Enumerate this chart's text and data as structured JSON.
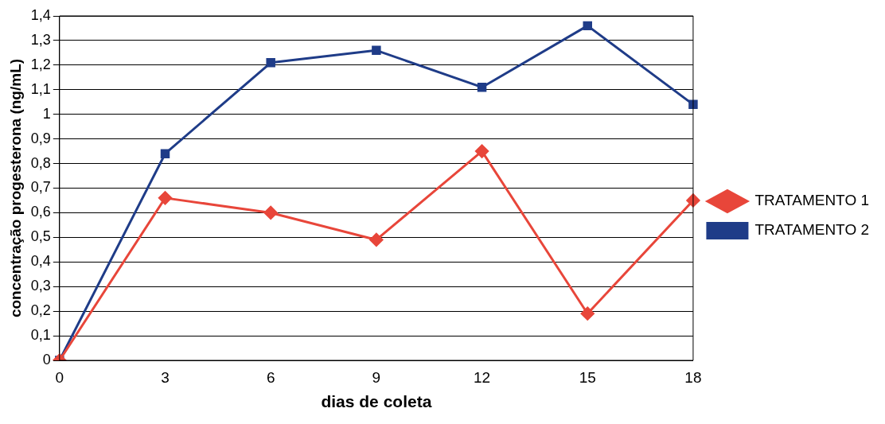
{
  "chart_data": {
    "type": "line",
    "xlabel": "dias de coleta",
    "ylabel": "concentração progesterona (ng/mL)",
    "categories": [
      "0",
      "3",
      "6",
      "9",
      "12",
      "15",
      "18"
    ],
    "series": [
      {
        "name": "TRATAMENTO 1",
        "color": "#e8463a",
        "marker": "diamond",
        "values": [
          0,
          0.66,
          0.6,
          0.49,
          0.85,
          0.19,
          0.65
        ]
      },
      {
        "name": "TRATAMENTO 2",
        "color": "#1f3c88",
        "marker": "square",
        "values": [
          0,
          0.84,
          1.21,
          1.26,
          1.11,
          1.36,
          1.04
        ]
      }
    ],
    "ylim": [
      0,
      1.4
    ],
    "yticks": [
      0,
      {
        "value": 0.1,
        "label": "0,1"
      },
      {
        "value": 0.2,
        "label": "0,2"
      },
      {
        "value": 0.3,
        "label": "0,3"
      },
      {
        "value": 0.4,
        "label": "0,4"
      },
      {
        "value": 0.5,
        "label": "0,5"
      },
      {
        "value": 0.6,
        "label": "0,6"
      },
      {
        "value": 0.7,
        "label": "0,7"
      },
      {
        "value": 0.8,
        "label": "0,8"
      },
      {
        "value": 0.9,
        "label": "0,9"
      },
      1,
      {
        "value": 1.1,
        "label": "1,1"
      },
      {
        "value": 1.2,
        "label": "1,2"
      },
      {
        "value": 1.3,
        "label": "1,3"
      },
      {
        "value": 1.4,
        "label": "1,4"
      }
    ],
    "grid": "y",
    "legend": "right",
    "line_style": "solid"
  }
}
